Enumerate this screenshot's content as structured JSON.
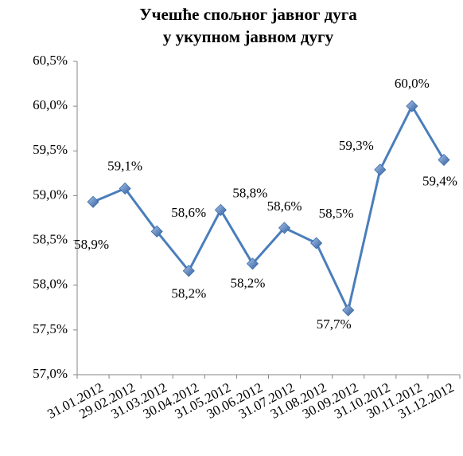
{
  "chart_data": {
    "type": "line",
    "title": [
      "Учешће спољног јавног дуга",
      "у укупном јавном дугу"
    ],
    "categories": [
      "31.01.2012",
      "29.02.2012",
      "31.03.2012",
      "30.04.2012",
      "31.05.2012",
      "30.06.2012",
      "31.07.2012",
      "31.08.2012",
      "30.09.2012",
      "31.10.2012",
      "30.11.2012",
      "31.12.2012"
    ],
    "series": [
      {
        "name": "Учешће",
        "color": "#4a7ebb",
        "values": [
          58.93,
          59.08,
          58.6,
          58.16,
          58.84,
          58.24,
          58.64,
          58.47,
          57.72,
          59.29,
          60.0,
          59.4
        ],
        "value_labels": [
          "58,9%",
          "59,1%",
          "58,6%",
          "58,2%",
          "58,8%",
          "58,2%",
          "58,6%",
          "58,5%",
          "57,7%",
          "59,3%",
          "60,0%",
          "59,4%"
        ]
      }
    ],
    "ylim": [
      57.0,
      60.5
    ],
    "yticks": [
      {
        "value": 57.0,
        "label": "57,0%"
      },
      {
        "value": 57.5,
        "label": "57,5%"
      },
      {
        "value": 58.0,
        "label": "58,0%"
      },
      {
        "value": 58.5,
        "label": "58,5%"
      },
      {
        "value": 59.0,
        "label": "59,0%"
      },
      {
        "value": 59.5,
        "label": "59,5%"
      },
      {
        "value": 60.0,
        "label": "60,0%"
      },
      {
        "value": 60.5,
        "label": "60,5%"
      }
    ],
    "grid": false
  }
}
